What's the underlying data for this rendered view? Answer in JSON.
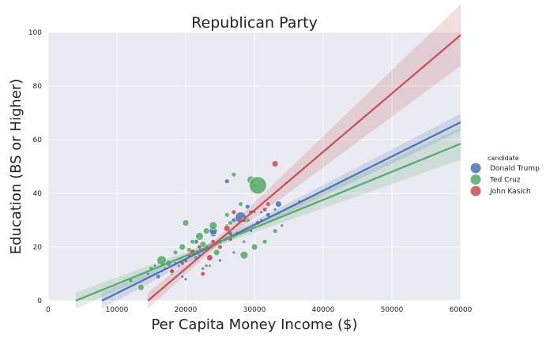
{
  "chart_data": {
    "type": "scatter",
    "title": "Republican Party",
    "xlabel": "Per Capita Money Income ($)",
    "ylabel": "Education (BS or Higher)",
    "xlim": [
      0,
      60000
    ],
    "ylim": [
      0,
      100
    ],
    "xticks": [
      0,
      10000,
      20000,
      30000,
      40000,
      50000,
      60000
    ],
    "yticks": [
      0,
      20,
      40,
      60,
      80,
      100
    ],
    "xtick_labels": [
      "0",
      "10000",
      "20000",
      "30000",
      "40000",
      "50000",
      "60000"
    ],
    "ytick_labels": [
      "0",
      "20",
      "40",
      "60",
      "80",
      "100"
    ],
    "grid": true,
    "legend": {
      "title": "candidate",
      "placement": "right"
    },
    "series": [
      {
        "name": "Donald Trump",
        "color": "#4c72b0",
        "fit": {
          "x": [
            7800,
            60000
          ],
          "y": [
            0,
            66.5
          ]
        },
        "band_halfwidth_at": {
          "x": [
            7800,
            25000,
            60000
          ],
          "y": [
            3.0,
            1.2,
            3.2
          ]
        },
        "points": [
          [
            12000,
            8,
            2
          ],
          [
            14500,
            10,
            2
          ],
          [
            16000,
            9,
            3
          ],
          [
            17000,
            12,
            2
          ],
          [
            18000,
            11,
            3
          ],
          [
            19000,
            13,
            2
          ],
          [
            20000,
            15,
            3
          ],
          [
            21000,
            18,
            3
          ],
          [
            22000,
            17,
            2
          ],
          [
            23000,
            20,
            3
          ],
          [
            24000,
            25,
            4
          ],
          [
            25000,
            22,
            3
          ],
          [
            26000,
            28,
            2
          ],
          [
            27000,
            30,
            3
          ],
          [
            28000,
            31,
            7
          ],
          [
            29000,
            35,
            3
          ],
          [
            30000,
            33,
            2
          ],
          [
            31000,
            33,
            2
          ],
          [
            32000,
            32,
            3
          ],
          [
            33500,
            36,
            4
          ],
          [
            34000,
            28,
            2
          ],
          [
            26000,
            44.5,
            3
          ],
          [
            36500,
            37,
            2
          ],
          [
            30000,
            43,
            2
          ],
          [
            20000,
            8,
            2
          ],
          [
            18500,
            14,
            2
          ],
          [
            22500,
            12,
            2
          ],
          [
            25000,
            15,
            2
          ],
          [
            27000,
            18,
            2
          ],
          [
            29500,
            26,
            2
          ],
          [
            31000,
            30,
            2
          ],
          [
            33000,
            34,
            2
          ],
          [
            24000,
            26,
            5
          ],
          [
            21500,
            22,
            3
          ],
          [
            19500,
            9,
            2
          ],
          [
            16500,
            11,
            2
          ],
          [
            15500,
            13,
            2
          ],
          [
            23500,
            16,
            2
          ],
          [
            28500,
            22,
            2
          ],
          [
            26500,
            25,
            3
          ]
        ]
      },
      {
        "name": "Ted Cruz",
        "color": "#55a868",
        "fit": {
          "x": [
            4000,
            60000
          ],
          "y": [
            0,
            58.5
          ]
        },
        "band_halfwidth_at": {
          "x": [
            4000,
            25000,
            60000
          ],
          "y": [
            3.0,
            1.0,
            6.0
          ]
        },
        "points": [
          [
            12000,
            7.5,
            3
          ],
          [
            13500,
            5,
            4
          ],
          [
            15000,
            12,
            3
          ],
          [
            16500,
            15,
            6
          ],
          [
            17500,
            14,
            4
          ],
          [
            18500,
            18,
            3
          ],
          [
            19500,
            20,
            4
          ],
          [
            20000,
            29,
            4
          ],
          [
            21000,
            22,
            3
          ],
          [
            22000,
            24,
            5
          ],
          [
            23000,
            26,
            4
          ],
          [
            24000,
            28,
            5
          ],
          [
            24500,
            18,
            4
          ],
          [
            25000,
            22,
            3
          ],
          [
            26000,
            32,
            3
          ],
          [
            27000,
            47,
            3
          ],
          [
            28000,
            36,
            3
          ],
          [
            29000,
            30,
            3
          ],
          [
            28500,
            17,
            5
          ],
          [
            29500,
            45,
            5
          ],
          [
            30500,
            43,
            11
          ],
          [
            30000,
            20,
            4
          ],
          [
            31500,
            22,
            3
          ],
          [
            33000,
            26,
            3
          ],
          [
            18000,
            10,
            2
          ],
          [
            21500,
            16,
            3
          ],
          [
            23500,
            13,
            2
          ],
          [
            26500,
            29,
            3
          ],
          [
            22500,
            21,
            4
          ],
          [
            20500,
            19,
            3
          ]
        ]
      },
      {
        "name": "John Kasich",
        "color": "#c44e52",
        "fit": {
          "x": [
            14500,
            60000
          ],
          "y": [
            0,
            99
          ]
        },
        "band_halfwidth_at": {
          "x": [
            14500,
            25000,
            60000
          ],
          "y": [
            3.0,
            1.5,
            11.5
          ]
        },
        "points": [
          [
            18000,
            11,
            3
          ],
          [
            19500,
            14,
            3
          ],
          [
            21000,
            18,
            4
          ],
          [
            22000,
            20,
            3
          ],
          [
            23500,
            16,
            4
          ],
          [
            24000,
            22,
            3
          ],
          [
            25000,
            20,
            3
          ],
          [
            26000,
            27,
            4
          ],
          [
            27500,
            25,
            3
          ],
          [
            28500,
            30,
            3
          ],
          [
            29500,
            33,
            3
          ],
          [
            31500,
            34,
            3
          ],
          [
            33000,
            51,
            4
          ],
          [
            32000,
            36,
            3
          ],
          [
            23000,
            13,
            2
          ],
          [
            20500,
            17,
            3
          ],
          [
            26500,
            23,
            3
          ],
          [
            30500,
            29,
            3
          ],
          [
            22500,
            10,
            3
          ],
          [
            27000,
            33,
            3
          ]
        ]
      }
    ]
  }
}
